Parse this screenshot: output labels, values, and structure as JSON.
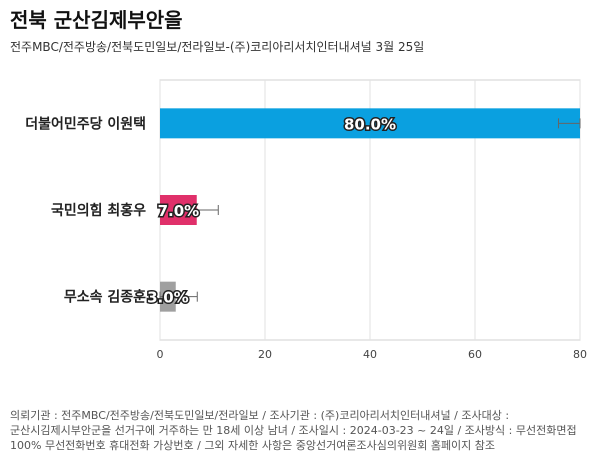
{
  "header": {
    "title": "전북 군산김제부안을",
    "subtitle": "전주MBC/전주방송/전북도민일보/전라일보-(주)코리아리서치인터내셔널 3월 25일"
  },
  "chart_data": {
    "type": "bar",
    "orientation": "horizontal",
    "categories": [
      "더불어민주당 이원택",
      "국민의힘 최홍우",
      "무소속 김종훈"
    ],
    "values": [
      80.0,
      7.0,
      3.0
    ],
    "value_labels": [
      "80.0%",
      "7.0%",
      "3.0%"
    ],
    "error_margin": 4.1,
    "colors": [
      "#0aa0e0",
      "#e0306a",
      "#a0a0a0"
    ],
    "xlim": [
      0,
      80
    ],
    "xticks": [
      0,
      20,
      40,
      60,
      80
    ],
    "grid": true
  },
  "footnote": {
    "lines": [
      "의뢰기관 : 전주MBC/전주방송/전북도민일보/전라일보 / 조사기관 : (주)코리아리서치인터내셔널 / 조사대상 :",
      "군산시김제시부안군을 선거구에 거주하는 만 18세 이상 남녀 / 조사일시 : 2024-03-23 ~ 24일 / 조사방식 : 무선전화면접",
      "100% 무선전화번호 휴대전화 가상번호 / 그외 자세한 사항은 중앙선거여론조사심의위원회 홈페이지 참조"
    ]
  }
}
